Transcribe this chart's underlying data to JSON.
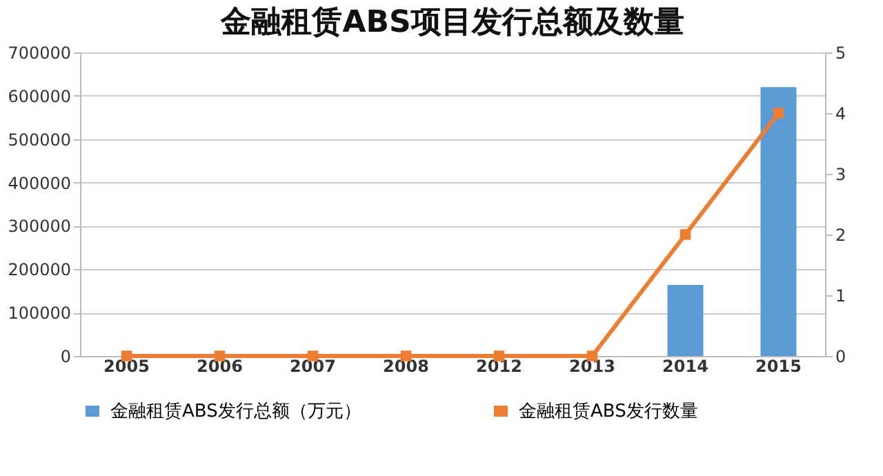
{
  "chart_data": {
    "type": "bar",
    "title": "金融租赁ABS项目发行总额及数量",
    "categories": [
      "2005",
      "2006",
      "2007",
      "2008",
      "2012",
      "2013",
      "2014",
      "2015"
    ],
    "series": [
      {
        "name": "金融租赁ABS发行总额（万元）",
        "color": "#5b9bd5",
        "values": [
          0,
          0,
          0,
          0,
          0,
          0,
          164000,
          620000
        ]
      },
      {
        "name": "金融租赁ABS发行数量",
        "type": "line",
        "axis": "y2",
        "color": "#ed7d31",
        "values": [
          0,
          0,
          0,
          0,
          0,
          0,
          2,
          4
        ]
      }
    ],
    "ylim": [
      0,
      700000
    ],
    "yticks": [
      0,
      100000,
      200000,
      300000,
      400000,
      500000,
      600000,
      700000
    ],
    "y2lim": [
      0,
      5
    ],
    "y2ticks": [
      0,
      1,
      2,
      3,
      4,
      5
    ],
    "grid": "y",
    "legend": "bottom",
    "marker": "square"
  }
}
